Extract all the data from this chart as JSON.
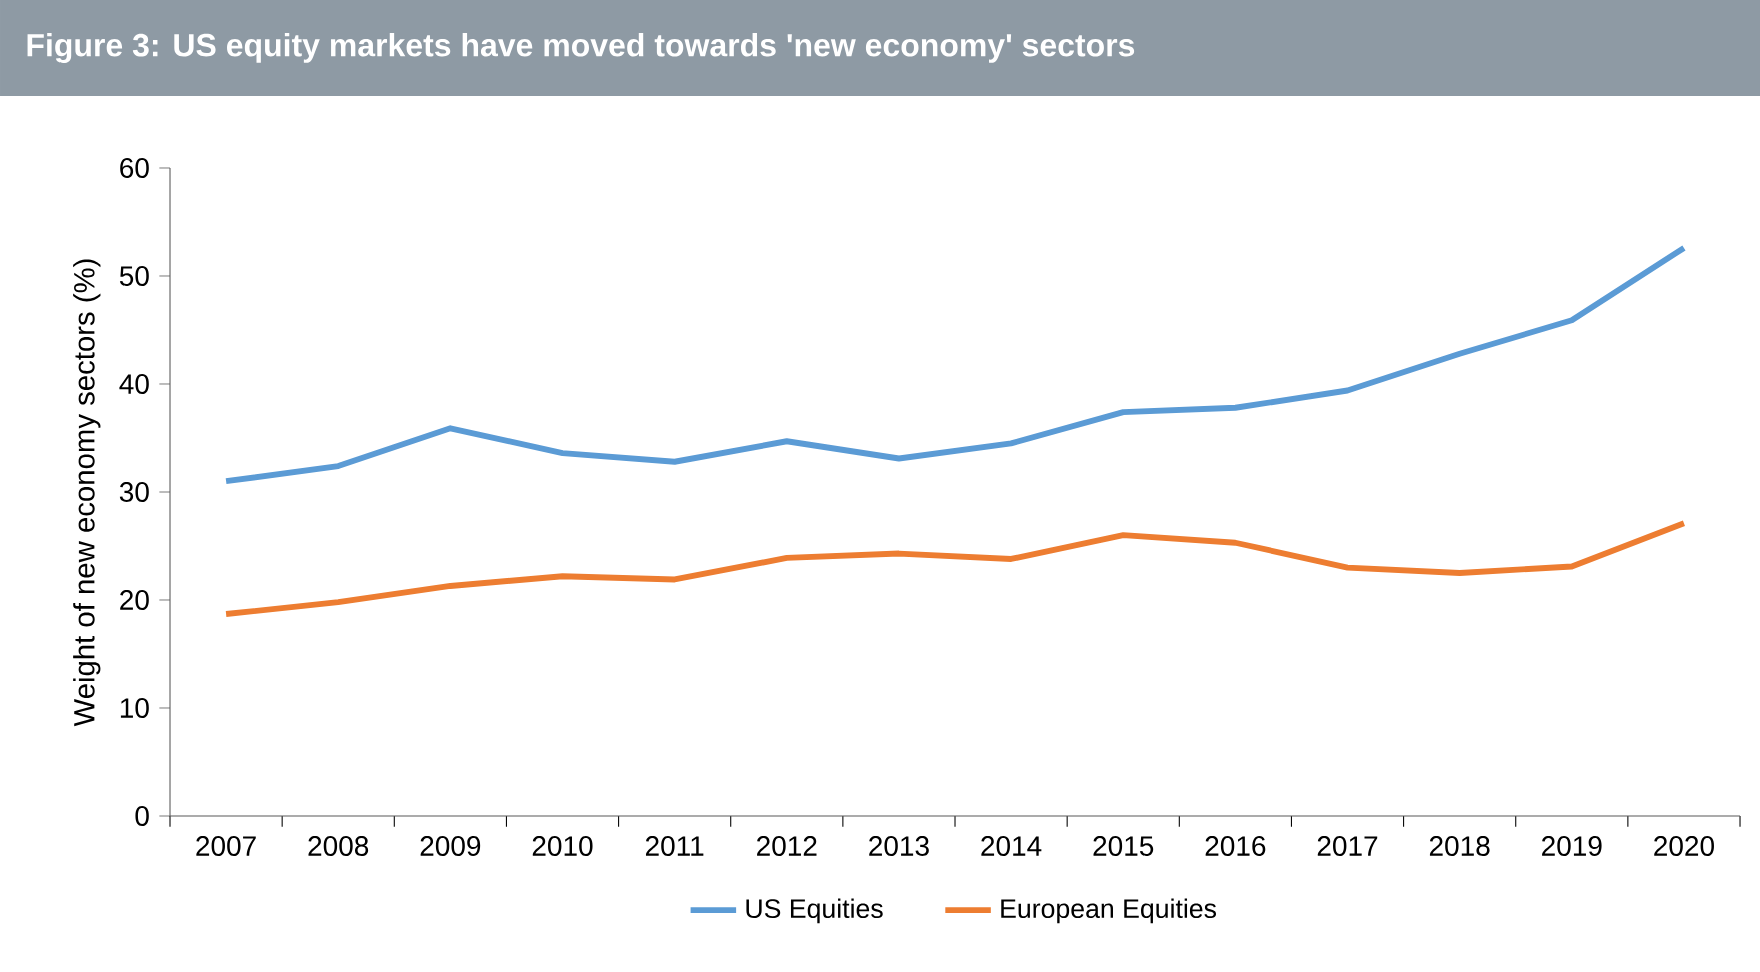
{
  "chart_data": {
    "type": "line",
    "title": "Figure 3: US equity markets have moved towards 'new economy' sectors",
    "ylabel": "Weight of new economy sectors (%)",
    "categories": [
      "2007",
      "2008",
      "2009",
      "2010",
      "2011",
      "2012",
      "2013",
      "2014",
      "2015",
      "2016",
      "2017",
      "2018",
      "2019",
      "2020"
    ],
    "series": [
      {
        "name": "US Equities",
        "color": "#5b9bd5",
        "values": [
          31.0,
          32.4,
          35.9,
          33.6,
          32.8,
          34.7,
          33.1,
          34.5,
          37.4,
          37.8,
          39.4,
          42.8,
          45.9,
          52.6
        ]
      },
      {
        "name": "European Equities",
        "color": "#ed7d31",
        "values": [
          18.7,
          19.8,
          21.3,
          22.2,
          21.9,
          23.9,
          24.3,
          23.8,
          26.0,
          25.3,
          23.0,
          22.5,
          23.1,
          27.1
        ]
      }
    ],
    "ylim": [
      0,
      60
    ],
    "yticks": [
      0,
      10,
      20,
      30,
      40,
      50,
      60
    ],
    "legend": "bottom",
    "grid": false,
    "marker": "none",
    "line_style": "solid"
  }
}
